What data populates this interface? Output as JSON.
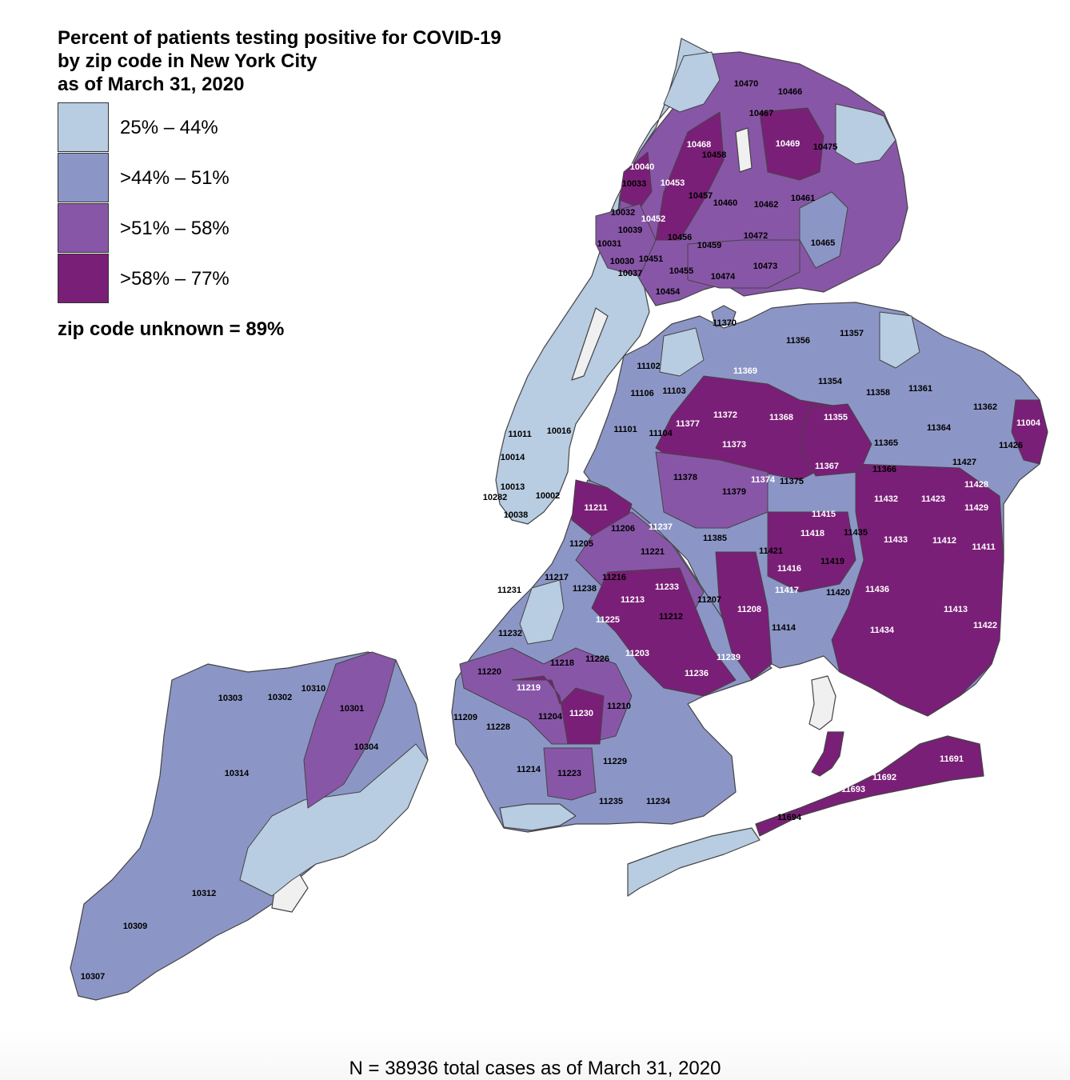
{
  "title": {
    "line1": "Percent of patients testing positive for COVID-19",
    "line2": "by zip code in New York City",
    "line3": "as of March 31, 2020"
  },
  "legend": {
    "items": [
      {
        "label": "25% – 44%",
        "color": "#b8cce2"
      },
      {
        "label": ">44% – 51%",
        "color": "#8c96c6"
      },
      {
        "label": ">51% – 58%",
        "color": "#8856a7"
      },
      {
        "label": ">58% – 77%",
        "color": "#7a1f77"
      }
    ],
    "unknown_note": "zip code unknown = 89%"
  },
  "footer": "N = 38936 total cases as of March 31, 2020",
  "colors": {
    "no_data": "#f0f0f0",
    "border": "#444444"
  },
  "zip_codes": [
    {
      "zip": "10470",
      "category": 3
    },
    {
      "zip": "10466",
      "category": 3
    },
    {
      "zip": "10467",
      "category": 3
    },
    {
      "zip": "10468",
      "category": 4
    },
    {
      "zip": "10458",
      "category": 3
    },
    {
      "zip": "10469",
      "category": 4
    },
    {
      "zip": "10475",
      "category": 3
    },
    {
      "zip": "10040",
      "category": 4
    },
    {
      "zip": "10033",
      "category": 3
    },
    {
      "zip": "10453",
      "category": 4
    },
    {
      "zip": "10457",
      "category": 3
    },
    {
      "zip": "10460",
      "category": 3
    },
    {
      "zip": "10462",
      "category": 2
    },
    {
      "zip": "10461",
      "category": 3
    },
    {
      "zip": "10032",
      "category": 3
    },
    {
      "zip": "10452",
      "category": 4
    },
    {
      "zip": "10039",
      "category": 3
    },
    {
      "zip": "10456",
      "category": 3
    },
    {
      "zip": "10472",
      "category": 3
    },
    {
      "zip": "10465",
      "category": 2
    },
    {
      "zip": "10031",
      "category": 3
    },
    {
      "zip": "10459",
      "category": 3
    },
    {
      "zip": "10030",
      "category": 3
    },
    {
      "zip": "10451",
      "category": 3
    },
    {
      "zip": "10473",
      "category": 3
    },
    {
      "zip": "10037",
      "category": 2
    },
    {
      "zip": "10455",
      "category": 3
    },
    {
      "zip": "10474",
      "category": 3
    },
    {
      "zip": "10454",
      "category": 3
    },
    {
      "zip": "11370",
      "category": 2
    },
    {
      "zip": "11356",
      "category": 2
    },
    {
      "zip": "11357",
      "category": 2
    },
    {
      "zip": "11369",
      "category": 4
    },
    {
      "zip": "11102",
      "category": 2
    },
    {
      "zip": "11354",
      "category": 2
    },
    {
      "zip": "11358",
      "category": 2
    },
    {
      "zip": "11361",
      "category": 2
    },
    {
      "zip": "11106",
      "category": 2
    },
    {
      "zip": "11103",
      "category": 2
    },
    {
      "zip": "11362",
      "category": 2
    },
    {
      "zip": "11377",
      "category": 4
    },
    {
      "zip": "11372",
      "category": 4
    },
    {
      "zip": "11368",
      "category": 4
    },
    {
      "zip": "11355",
      "category": 4
    },
    {
      "zip": "11004",
      "category": 4
    },
    {
      "zip": "11101",
      "category": 2
    },
    {
      "zip": "11104",
      "category": 2
    },
    {
      "zip": "11364",
      "category": 2
    },
    {
      "zip": "11011",
      "category": 1
    },
    {
      "zip": "10016",
      "category": 1
    },
    {
      "zip": "11373",
      "category": 4
    },
    {
      "zip": "11365",
      "category": 3
    },
    {
      "zip": "11426",
      "category": 2
    },
    {
      "zip": "10014",
      "category": 1
    },
    {
      "zip": "11367",
      "category": 4
    },
    {
      "zip": "11366",
      "category": 3
    },
    {
      "zip": "11427",
      "category": 3
    },
    {
      "zip": "11378",
      "category": 3
    },
    {
      "zip": "11374",
      "category": 4
    },
    {
      "zip": "11375",
      "category": 2
    },
    {
      "zip": "11428",
      "category": 4
    },
    {
      "zip": "10013",
      "category": 1
    },
    {
      "zip": "11379",
      "category": 3
    },
    {
      "zip": "11432",
      "category": 4
    },
    {
      "zip": "11423",
      "category": 4
    },
    {
      "zip": "10282",
      "category": 1
    },
    {
      "zip": "10002",
      "category": 2
    },
    {
      "zip": "11211",
      "category": 4
    },
    {
      "zip": "11429",
      "category": 4
    },
    {
      "zip": "10038",
      "category": 1
    },
    {
      "zip": "11415",
      "category": 4
    },
    {
      "zip": "11237",
      "category": 4
    },
    {
      "zip": "11206",
      "category": 3
    },
    {
      "zip": "11418",
      "category": 4
    },
    {
      "zip": "11435",
      "category": 3
    },
    {
      "zip": "11385",
      "category": 3
    },
    {
      "zip": "11433",
      "category": 4
    },
    {
      "zip": "11412",
      "category": 4
    },
    {
      "zip": "11205",
      "category": 3
    },
    {
      "zip": "11411",
      "category": 4
    },
    {
      "zip": "11221",
      "category": 3
    },
    {
      "zip": "11421",
      "category": 3
    },
    {
      "zip": "11419",
      "category": 3
    },
    {
      "zip": "11217",
      "category": 2
    },
    {
      "zip": "11216",
      "category": 3
    },
    {
      "zip": "11416",
      "category": 4
    },
    {
      "zip": "11238",
      "category": 3
    },
    {
      "zip": "11233",
      "category": 4
    },
    {
      "zip": "11231",
      "category": 2
    },
    {
      "zip": "11436",
      "category": 4
    },
    {
      "zip": "11213",
      "category": 4
    },
    {
      "zip": "11207",
      "category": 3
    },
    {
      "zip": "11417",
      "category": 4
    },
    {
      "zip": "11420",
      "category": 3
    },
    {
      "zip": "11208",
      "category": 4
    },
    {
      "zip": "11413",
      "category": 4
    },
    {
      "zip": "11225",
      "category": 4
    },
    {
      "zip": "11212",
      "category": 3
    },
    {
      "zip": "11414",
      "category": 2
    },
    {
      "zip": "11422",
      "category": 4
    },
    {
      "zip": "11232",
      "category": 2
    },
    {
      "zip": "11434",
      "category": 4
    },
    {
      "zip": "11203",
      "category": 4
    },
    {
      "zip": "11218",
      "category": 3
    },
    {
      "zip": "11226",
      "category": 3
    },
    {
      "zip": "11239",
      "category": 4
    },
    {
      "zip": "11236",
      "category": 4
    },
    {
      "zip": "11220",
      "category": 3
    },
    {
      "zip": "11219",
      "category": 4
    },
    {
      "zip": "10310",
      "category": 2
    },
    {
      "zip": "10303",
      "category": 2
    },
    {
      "zip": "10302",
      "category": 2
    },
    {
      "zip": "10301",
      "category": 3
    },
    {
      "zip": "11210",
      "category": 3
    },
    {
      "zip": "11230",
      "category": 4
    },
    {
      "zip": "11209",
      "category": 2
    },
    {
      "zip": "11228",
      "category": 2
    },
    {
      "zip": "11204",
      "category": 3
    },
    {
      "zip": "10304",
      "category": 3
    },
    {
      "zip": "11691",
      "category": 4
    },
    {
      "zip": "11229",
      "category": 2
    },
    {
      "zip": "10314",
      "category": 2
    },
    {
      "zip": "11214",
      "category": 2
    },
    {
      "zip": "11223",
      "category": 3
    },
    {
      "zip": "11692",
      "category": 4
    },
    {
      "zip": "11693",
      "category": 4
    },
    {
      "zip": "11235",
      "category": 2
    },
    {
      "zip": "11234",
      "category": 2
    },
    {
      "zip": "11694",
      "category": 3
    },
    {
      "zip": "10312",
      "category": 2
    },
    {
      "zip": "10309",
      "category": 2
    },
    {
      "zip": "10307",
      "category": 2
    }
  ]
}
